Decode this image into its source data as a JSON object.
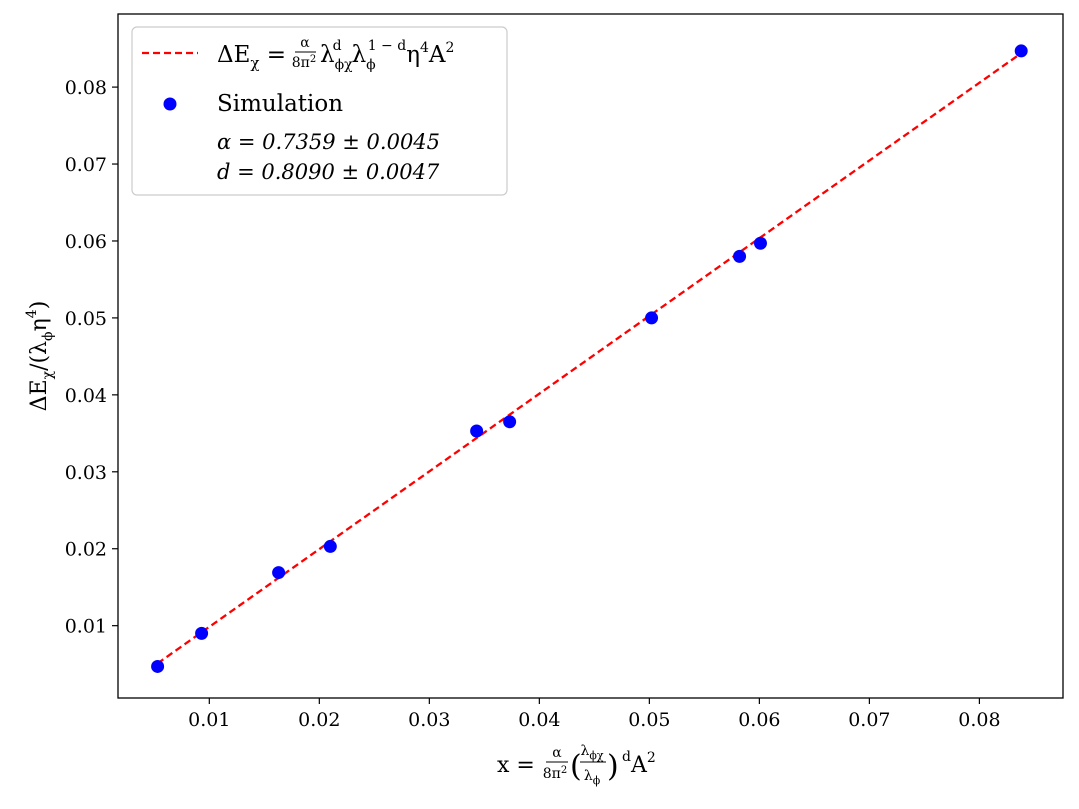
{
  "chart_data": {
    "type": "scatter",
    "title": "",
    "xlabel": "x = (α/8π²)(λφχ/λφ)ᵈ A²",
    "ylabel": "ΔEχ/(λφη⁴)",
    "xlim": [
      0.0017,
      0.0876
    ],
    "ylim": [
      0.0006,
      0.0895
    ],
    "x_ticks": [
      0.01,
      0.02,
      0.03,
      0.04,
      0.05,
      0.06,
      0.07,
      0.08
    ],
    "y_ticks": [
      0.01,
      0.02,
      0.03,
      0.04,
      0.05,
      0.06,
      0.07,
      0.08
    ],
    "x_tick_labels": [
      "0.01",
      "0.02",
      "0.03",
      "0.04",
      "0.05",
      "0.06",
      "0.07",
      "0.08"
    ],
    "y_tick_labels": [
      "0.01",
      "0.02",
      "0.03",
      "0.04",
      "0.05",
      "0.06",
      "0.07",
      "0.08"
    ],
    "grid": false,
    "legend_position": "top-left",
    "series": [
      {
        "name": "ΔEχ = (α/8π²) λφχᵈ λφ¹⁻ᵈ η⁴ A²",
        "kind": "fit-line",
        "style": "dashed",
        "color": "#ff0000",
        "x": [
          0.0053,
          0.0838
        ],
        "y": [
          0.0051,
          0.0844
        ]
      },
      {
        "name": "Simulation",
        "kind": "scatter",
        "color": "#0000ff",
        "x": [
          0.0053,
          0.0093,
          0.0163,
          0.021,
          0.0343,
          0.0373,
          0.0502,
          0.0582,
          0.0601,
          0.0838
        ],
        "y": [
          0.0047,
          0.009,
          0.0169,
          0.0203,
          0.0353,
          0.0365,
          0.05,
          0.058,
          0.0597,
          0.0847
        ]
      }
    ],
    "annotations": [
      "α = 0.7359 ± 0.0045",
      "d = 0.8090 ± 0.0047"
    ]
  },
  "legend": {
    "fit_parts": {
      "delta_e": "ΔE",
      "chi": "χ",
      "eq": " = ",
      "alpha": "α",
      "denom": "8π",
      "denom_sup": "2",
      "lambda": "λ",
      "sub_phichi": "ϕχ",
      "sup_d": "d",
      "sub_phi": "ϕ",
      "sup_1md": "1 − d",
      "eta": "η",
      "sup_4": "4",
      "a": "A",
      "sup_2": "2"
    },
    "simulation_label": "Simulation",
    "alpha_line": "α = 0.7359 ± 0.0045",
    "d_line": "d = 0.8090 ± 0.0047"
  },
  "axes_text": {
    "y": {
      "open": "ΔE",
      "chi": "χ",
      "slash": "/(",
      "lambda": "λ",
      "phi": "ϕ",
      "eta": "η",
      "four": "4",
      "close": ")"
    },
    "x": {
      "x_eq": "x = ",
      "alpha": "α",
      "denom": "8π",
      "denom_sup": "2",
      "lambda": "λ",
      "phichi": "ϕχ",
      "phi": "ϕ",
      "sup_d": "d",
      "a": "A",
      "sup_2": "2",
      "lparen": "(",
      "rparen": ")"
    }
  }
}
